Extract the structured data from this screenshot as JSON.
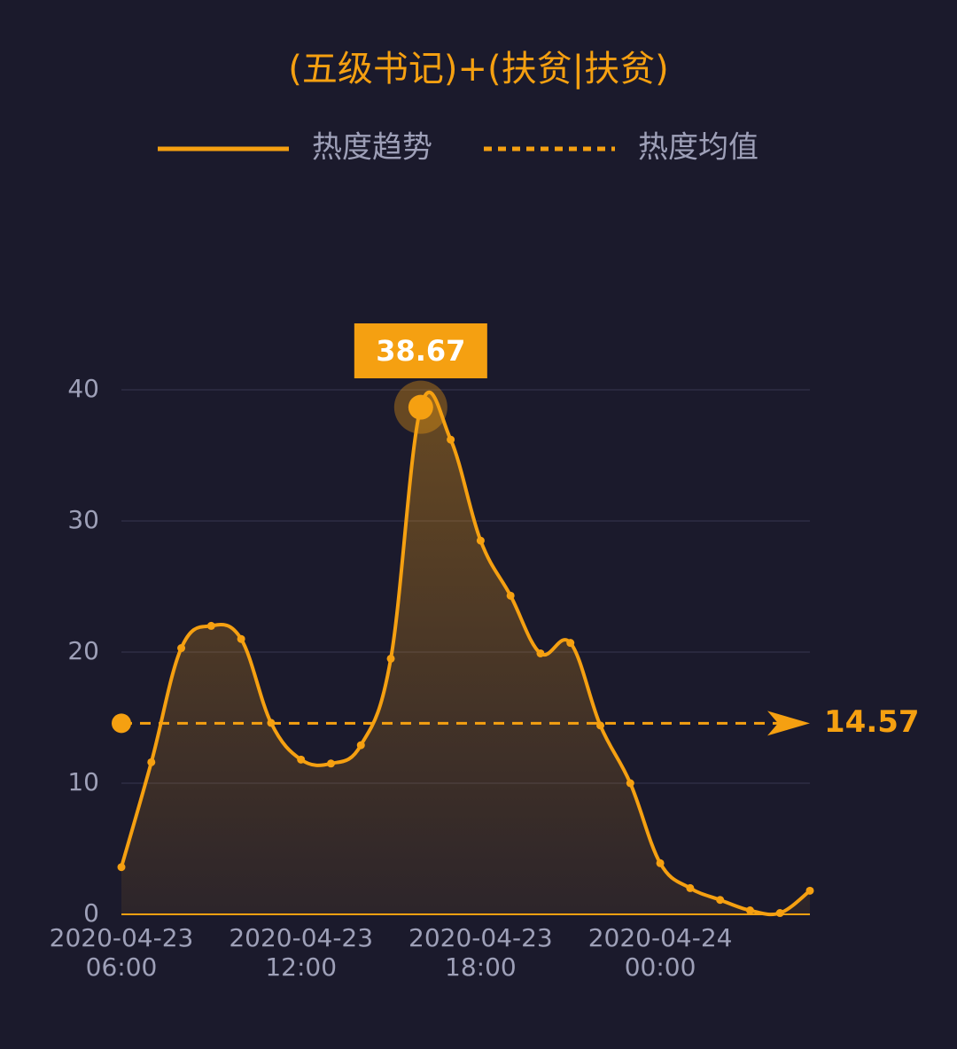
{
  "chart_data": {
    "type": "line",
    "title": "(五级书记)+(扶贫|扶贫)",
    "categories": [
      "2020-04-23 06:00",
      null,
      null,
      null,
      null,
      null,
      "2020-04-23 12:00",
      null,
      null,
      null,
      null,
      null,
      "2020-04-23 18:00",
      null,
      null,
      null,
      null,
      null,
      "2020-04-24 00:00",
      null,
      null,
      null,
      null,
      null
    ],
    "series": [
      {
        "name": "热度趋势",
        "color": "#f5a011",
        "values": [
          3.6,
          11.6,
          20.3,
          22.0,
          21.0,
          14.6,
          11.8,
          11.5,
          12.9,
          19.5,
          38.67,
          36.2,
          28.5,
          24.3,
          19.9,
          20.7,
          14.4,
          10.0,
          3.9,
          2.0,
          1.1,
          0.3,
          0.1,
          1.8
        ]
      }
    ],
    "mean": {
      "name": "热度均值",
      "value": 14.57
    },
    "peak_index": 10,
    "ylim": [
      0,
      40
    ],
    "yticks": [
      0,
      10,
      20,
      30,
      40
    ],
    "grid": true
  }
}
